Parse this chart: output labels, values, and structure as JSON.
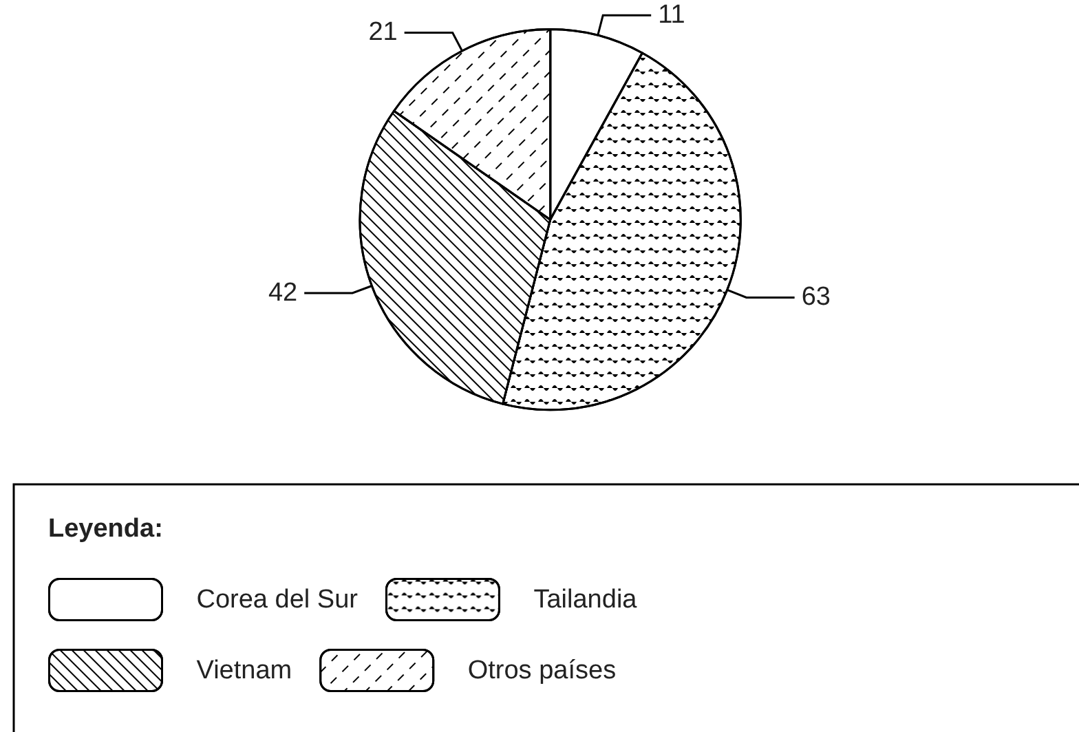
{
  "chart_data": {
    "type": "pie",
    "legend_title": "Leyenda:",
    "legend": "bottom",
    "data_labels": true,
    "categories": [
      "Corea del Sur",
      "Tailandia",
      "Vietnam",
      "Otros países"
    ],
    "values": [
      11,
      63,
      42,
      21
    ],
    "colors": [
      "#ffffff",
      "#ffffff",
      "#ffffff",
      "#ffffff"
    ]
  }
}
